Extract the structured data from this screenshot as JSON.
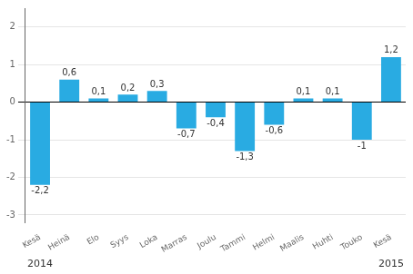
{
  "chart_data": {
    "type": "bar",
    "categories": [
      "Kesä",
      "Heinä",
      "Elo",
      "Syys",
      "Loka",
      "Marras",
      "Joulu",
      "Tammi",
      "Helmi",
      "Maalis",
      "Huhti",
      "Touko",
      "Kesä"
    ],
    "values": [
      -2.2,
      0.6,
      0.1,
      0.2,
      0.3,
      -0.7,
      -0.4,
      -1.3,
      -0.6,
      0.1,
      0.1,
      -1.0,
      1.2
    ],
    "value_labels": [
      "-2,2",
      "0,6",
      "0,1",
      "0,2",
      "0,3",
      "-0,7",
      "-0,4",
      "-1,3",
      "-0,6",
      "0,1",
      "0,1",
      "-1",
      "1,2"
    ],
    "color": "#29abe2",
    "ylim": [
      -3.2,
      2.5
    ],
    "yticks": [
      -3,
      -2,
      -1,
      0,
      1,
      2
    ],
    "grid": true,
    "data_labels": true,
    "annotations": [
      {
        "text": "2014",
        "x": 0
      },
      {
        "text": "2015",
        "x": 12
      }
    ]
  }
}
